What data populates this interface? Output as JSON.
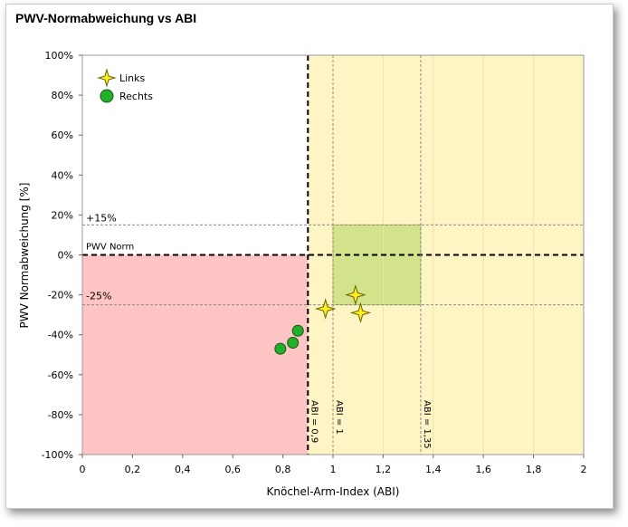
{
  "chart_data": {
    "type": "scatter",
    "title": "PWV-Normabweichung vs ABI",
    "xlabel": "Knöchel-Arm-Index (ABI)",
    "ylabel": "PWV Normabweichung [%]",
    "xlim": [
      0,
      2
    ],
    "ylim": [
      -100,
      100
    ],
    "x_ticks": [
      "0",
      "0,2",
      "0,4",
      "0,6",
      "0,8",
      "1",
      "1,2",
      "1,4",
      "1,6",
      "1,8",
      "2"
    ],
    "y_ticks": [
      "100%",
      "80%",
      "60%",
      "40%",
      "20%",
      "0%",
      "-20%",
      "-40%",
      "-60%",
      "-80%",
      "-100%"
    ],
    "legend_position": "top-left",
    "series": [
      {
        "name": "Links",
        "marker": "star",
        "color": "#ffef1c",
        "points": [
          [
            0.97,
            -27
          ],
          [
            1.09,
            -20
          ],
          [
            1.11,
            -29
          ]
        ]
      },
      {
        "name": "Rechts",
        "marker": "circle",
        "color": "#22b02a",
        "points": [
          [
            0.79,
            -47
          ],
          [
            0.84,
            -44
          ],
          [
            0.86,
            -38
          ]
        ]
      }
    ],
    "regions": [
      {
        "x": [
          0,
          0.9
        ],
        "y": [
          -100,
          0
        ],
        "color": "#ffc4c4"
      },
      {
        "x": [
          0.9,
          2
        ],
        "y": [
          -100,
          100
        ],
        "color": "#fff5c4"
      },
      {
        "x": [
          1,
          1.35
        ],
        "y": [
          -25,
          15
        ],
        "color": "#d2e38c"
      }
    ],
    "reference_lines": {
      "horizontal": [
        {
          "y": 15,
          "label": "+15%",
          "style": "dashed-thin"
        },
        {
          "y": 0,
          "label": "PWV Norm",
          "style": "dashed-thick"
        },
        {
          "y": -25,
          "label": "-25%",
          "style": "dashed-thin"
        }
      ],
      "vertical": [
        {
          "x": 0.9,
          "label": "ABI = 0,9",
          "style": "dashed-thick"
        },
        {
          "x": 1,
          "label": "ABI = 1",
          "style": "dashed-thin"
        },
        {
          "x": 1.35,
          "label": "ABI = 1,35",
          "style": "dashed-thin"
        }
      ]
    },
    "grid": false
  }
}
